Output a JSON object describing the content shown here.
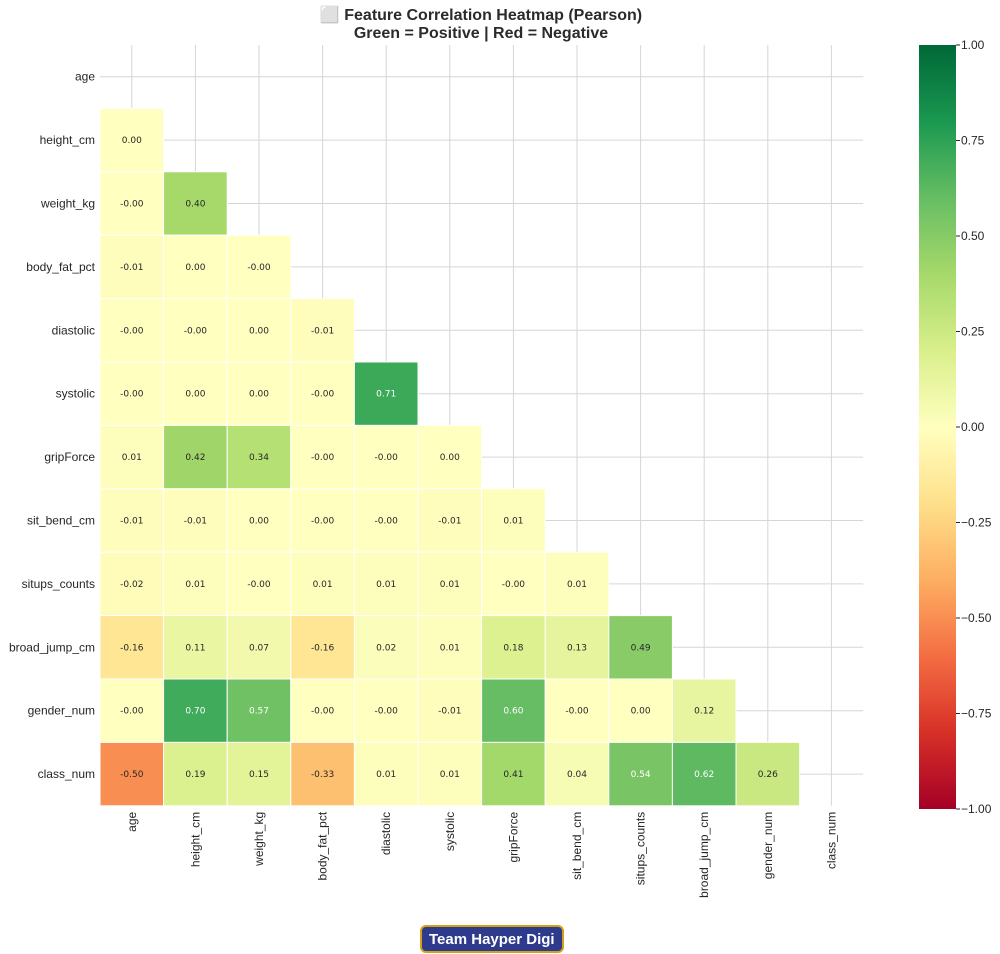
{
  "chart_data": {
    "type": "heatmap",
    "title_lines": [
      "⬜ Feature Correlation Heatmap (Pearson)",
      "Green = Positive | Red = Negative"
    ],
    "labels": [
      "age",
      "height_cm",
      "weight_kg",
      "body_fat_pct",
      "diastolic",
      "systolic",
      "gripForce",
      "sit_bend_cm",
      "situps_counts",
      "broad_jump_cm",
      "gender_num",
      "class_num"
    ],
    "lower_triangle": [
      [],
      [
        0.0
      ],
      [
        -0.0,
        0.4
      ],
      [
        -0.01,
        0.0,
        -0.0
      ],
      [
        -0.0,
        -0.0,
        0.0,
        -0.01
      ],
      [
        -0.0,
        0.0,
        0.0,
        -0.0,
        0.71
      ],
      [
        0.01,
        0.42,
        0.34,
        -0.0,
        -0.0,
        0.0
      ],
      [
        -0.01,
        -0.01,
        0.0,
        -0.0,
        -0.0,
        -0.01,
        0.01
      ],
      [
        -0.02,
        0.01,
        -0.0,
        0.01,
        0.01,
        0.01,
        -0.0,
        0.01
      ],
      [
        -0.16,
        0.11,
        0.07,
        -0.16,
        0.02,
        0.01,
        0.18,
        0.13,
        0.49
      ],
      [
        -0.0,
        0.7,
        0.57,
        -0.0,
        -0.0,
        -0.01,
        0.6,
        -0.0,
        0.0,
        0.12
      ],
      [
        -0.5,
        0.19,
        0.15,
        -0.33,
        0.01,
        0.01,
        0.41,
        0.04,
        0.54,
        0.62,
        0.26
      ]
    ],
    "cell_labels": [
      [],
      [
        "0.00"
      ],
      [
        "-0.00",
        "0.40"
      ],
      [
        "-0.01",
        "0.00",
        "-0.00"
      ],
      [
        "-0.00",
        "-0.00",
        "0.00",
        "-0.01"
      ],
      [
        "-0.00",
        "0.00",
        "0.00",
        "-0.00",
        "0.71"
      ],
      [
        "0.01",
        "0.42",
        "0.34",
        "-0.00",
        "-0.00",
        "0.00"
      ],
      [
        "-0.01",
        "-0.01",
        "0.00",
        "-0.00",
        "-0.00",
        "-0.01",
        "0.01"
      ],
      [
        "-0.02",
        "0.01",
        "-0.00",
        "0.01",
        "0.01",
        "0.01",
        "-0.00",
        "0.01"
      ],
      [
        "-0.16",
        "0.11",
        "0.07",
        "-0.16",
        "0.02",
        "0.01",
        "0.18",
        "0.13",
        "0.49"
      ],
      [
        "-0.00",
        "0.70",
        "0.57",
        "-0.00",
        "-0.00",
        "-0.01",
        "0.60",
        "-0.00",
        "0.00",
        "0.12"
      ],
      [
        "-0.50",
        "0.19",
        "0.15",
        "-0.33",
        "0.01",
        "0.01",
        "0.41",
        "0.04",
        "0.54",
        "0.62",
        "0.26"
      ]
    ],
    "color_scale": {
      "colormap": "RdYlGn",
      "vmin": -1.0,
      "vmax": 1.0,
      "ticks": [
        1.0,
        0.75,
        0.5,
        0.25,
        0.0,
        -0.25,
        -0.5,
        -0.75,
        -1.0
      ],
      "tick_labels": [
        "1.00",
        "0.75",
        "0.50",
        "0.25",
        "0.00",
        "−0.25",
        "−0.50",
        "−0.75",
        "−1.00"
      ]
    },
    "mask": "upper_triangle_and_diagonal",
    "grid": true
  },
  "footer": {
    "badge_text": "Team Hayper Digi",
    "badge_bg": "#2e3a8c",
    "badge_border": "#d4a017"
  }
}
